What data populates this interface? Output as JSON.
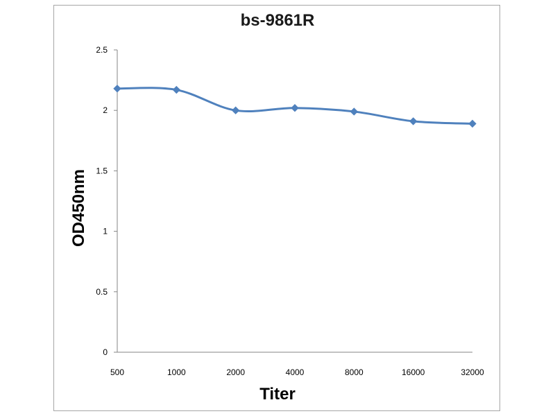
{
  "chart_data": {
    "type": "line",
    "title": "bs-9861R",
    "xlabel": "Titer",
    "ylabel": "OD450nm",
    "categories": [
      "500",
      "1000",
      "2000",
      "4000",
      "8000",
      "16000",
      "32000"
    ],
    "series": [
      {
        "values": [
          2.18,
          2.17,
          2.0,
          2.02,
          1.99,
          1.91,
          1.89
        ],
        "color": "#4f81bd"
      }
    ],
    "ylim": [
      0,
      2.5
    ],
    "yticks": [
      "0",
      "0.5",
      "1",
      "1.5",
      "2",
      "2.5"
    ],
    "grid": false,
    "legend": "none",
    "marker": "diamond"
  }
}
